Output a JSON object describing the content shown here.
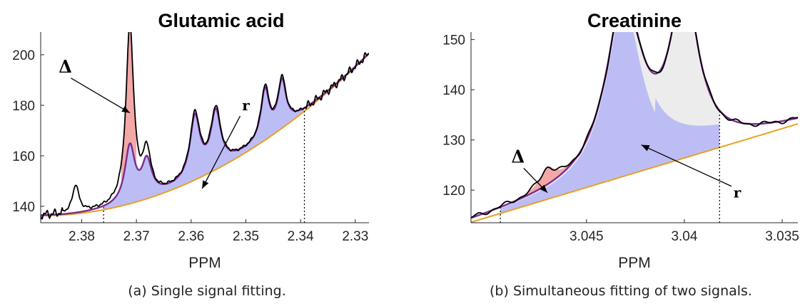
{
  "colors": {
    "spectrum": "#000000",
    "fit": "#7b2d8e",
    "baseline": "#e8a020",
    "fill_r": "#bdbdf5",
    "fill_delta": "#f3a8a8",
    "fill_other": "#ececec"
  },
  "chart_data": [
    {
      "type": "line",
      "title": "Glutamic acid",
      "xlabel": "PPM",
      "ylabel": "",
      "caption": "(a) Single signal fitting.",
      "x_reversed": true,
      "xlim": [
        2.3875,
        2.3275
      ],
      "ylim": [
        133.5,
        209
      ],
      "xticks": [
        2.38,
        2.37,
        2.36,
        2.35,
        2.34,
        2.33
      ],
      "xtick_labels": [
        "2.38",
        "2.37",
        "2.36",
        "2.35",
        "2.34",
        "2.33"
      ],
      "yticks": [
        140,
        160,
        180,
        200
      ],
      "ytick_labels": [
        "140",
        "160",
        "180",
        "200"
      ],
      "fit_range": [
        2.376,
        2.3393
      ],
      "baseline": {
        "a": 136.3,
        "b": 17.8,
        "x_start": 2.3875,
        "x_end": 2.3275
      },
      "peaks": [
        {
          "x": 2.3811,
          "height": 11,
          "width": 0.0007
        },
        {
          "x": 2.3712,
          "height": 70,
          "width": 0.00085
        },
        {
          "x": 2.3681,
          "height": 17,
          "width": 0.0009
        },
        {
          "x": 2.3593,
          "height": 25,
          "width": 0.0011
        },
        {
          "x": 2.3555,
          "height": 23,
          "width": 0.0011
        },
        {
          "x": 2.3465,
          "height": 20,
          "width": 0.0009
        },
        {
          "x": 2.3434,
          "height": 19,
          "width": 0.0009
        }
      ],
      "fit_peaks": [
        {
          "x": 2.3712,
          "height": 22,
          "width": 0.0011
        },
        {
          "x": 2.3681,
          "height": 14,
          "width": 0.0011
        },
        {
          "x": 2.3593,
          "height": 24,
          "width": 0.0011
        },
        {
          "x": 2.3555,
          "height": 22,
          "width": 0.0011
        },
        {
          "x": 2.3465,
          "height": 19,
          "width": 0.0009
        },
        {
          "x": 2.3434,
          "height": 18,
          "width": 0.0009
        }
      ],
      "delta_range": [
        2.3728,
        2.37
      ],
      "annotations": [
        {
          "text": "Δ",
          "x": 2.383,
          "y": 193,
          "arrow_to": [
            2.3712,
            177
          ]
        },
        {
          "text": "r",
          "x": 2.35,
          "y": 178,
          "arrow_to": [
            2.358,
            147
          ]
        }
      ]
    },
    {
      "type": "line",
      "title": "Creatinine",
      "xlabel": "PPM",
      "ylabel": "",
      "caption": "(b) Simultaneous fitting of two signals.",
      "x_reversed": true,
      "xlim": [
        3.0509,
        3.0342
      ],
      "ylim": [
        113.5,
        151.5
      ],
      "xticks": [
        3.045,
        3.04,
        3.035
      ],
      "xtick_labels": [
        "3.045",
        "3.04",
        "3.035"
      ],
      "yticks": [
        120,
        130,
        140,
        150
      ],
      "ytick_labels": [
        "120",
        "130",
        "140",
        "150"
      ],
      "fit_range": [
        3.0494,
        3.0382
      ],
      "baseline": {
        "x0": 3.0509,
        "y0": 113.6,
        "x1": 3.0342,
        "y1": 133.2
      },
      "peaks": [
        {
          "x": 3.0431,
          "height": 34,
          "width": 0.0011
        },
        {
          "x": 3.04,
          "height": 31.5,
          "width": 0.00085
        },
        {
          "x": 3.047,
          "height": 3.5,
          "width": 0.00045
        }
      ],
      "fit_peaks": [
        {
          "x": 3.0431,
          "height": 34,
          "width": 0.0011
        },
        {
          "x": 3.04,
          "height": 31.5,
          "width": 0.00085
        }
      ],
      "annotations": [
        {
          "text": "Δ",
          "x": 3.0485,
          "y": 125.5,
          "arrow_to": [
            3.047,
            119.5
          ]
        },
        {
          "text": "r",
          "x": 3.0373,
          "y": 118.5,
          "arrow_to": [
            3.0422,
            129
          ]
        }
      ]
    }
  ]
}
